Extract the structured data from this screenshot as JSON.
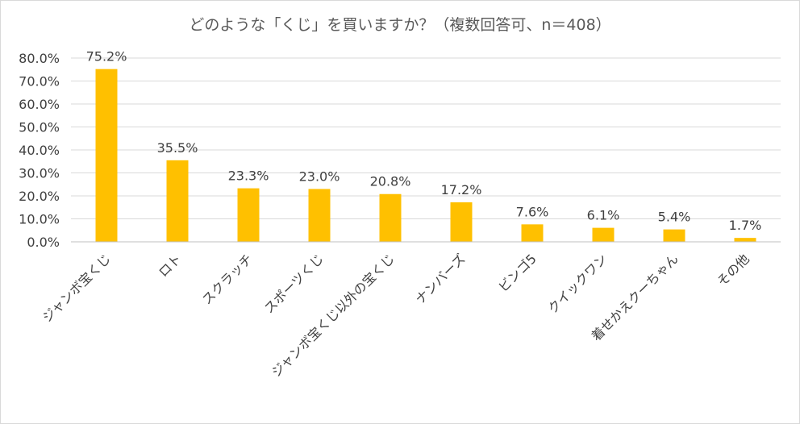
{
  "chart_data": {
    "type": "bar",
    "title": "どのような「くじ」を買いますか？（複数回答可、n＝408）",
    "categories": [
      "ジャンボ宝くじ",
      "ロト",
      "スクラッチ",
      "スポーツくじ",
      "ジャンボ宝くじ以外の宝くじ",
      "ナンバーズ",
      "ビンゴ5",
      "クイックワン",
      "着せかえクーちゃん",
      "その他"
    ],
    "values": [
      75.2,
      35.5,
      23.3,
      23.0,
      20.8,
      17.2,
      7.6,
      6.1,
      5.4,
      1.7
    ],
    "data_labels": [
      "75.2%",
      "35.5%",
      "23.3%",
      "23.0%",
      "20.8%",
      "17.2%",
      "7.6%",
      "6.1%",
      "5.4%",
      "1.7%"
    ],
    "y_ticks": [
      "0.0%",
      "10.0%",
      "20.0%",
      "30.0%",
      "40.0%",
      "50.0%",
      "60.0%",
      "70.0%",
      "80.0%"
    ],
    "ylim": [
      0,
      80
    ],
    "xlabel": "",
    "ylabel": "",
    "grid": true,
    "legend": "none",
    "bar_color": "#FFC000",
    "grid_color": "#d9d9d9"
  }
}
